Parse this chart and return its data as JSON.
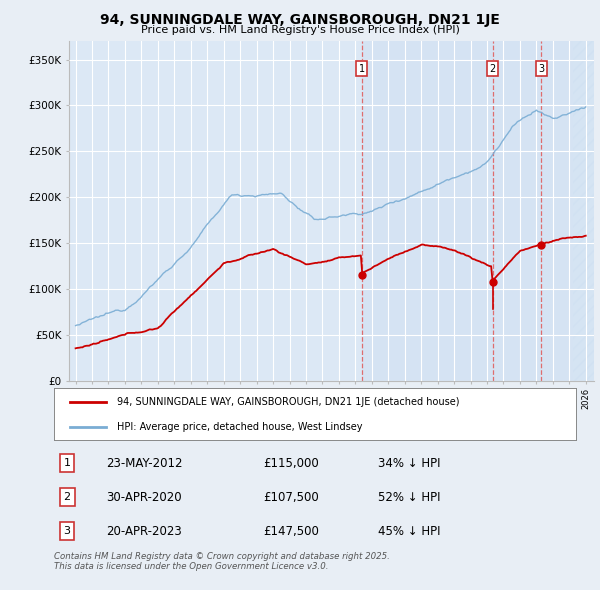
{
  "title": "94, SUNNINGDALE WAY, GAINSBOROUGH, DN21 1JE",
  "subtitle": "Price paid vs. HM Land Registry's House Price Index (HPI)",
  "background_color": "#e8eef5",
  "plot_bg_color": "#dce8f5",
  "shaded_bg_color": "#dce8f5",
  "grid_color": "#ffffff",
  "hpi_color": "#7aadd4",
  "price_color": "#cc0000",
  "vline_color": "#e06060",
  "ylim": [
    0,
    370000
  ],
  "yticks": [
    0,
    50000,
    100000,
    150000,
    200000,
    250000,
    300000,
    350000
  ],
  "ytick_labels": [
    "£0",
    "£50K",
    "£100K",
    "£150K",
    "£200K",
    "£250K",
    "£300K",
    "£350K"
  ],
  "sale_times": [
    2012.386,
    2020.333,
    2023.302
  ],
  "sale_prices": [
    115000,
    107500,
    147500
  ],
  "sale_labels": [
    "1",
    "2",
    "3"
  ],
  "legend_line1": "94, SUNNINGDALE WAY, GAINSBOROUGH, DN21 1JE (detached house)",
  "legend_line2": "HPI: Average price, detached house, West Lindsey",
  "sale_rows": [
    [
      "1",
      "23-MAY-2012",
      "£115,000",
      "34% ↓ HPI"
    ],
    [
      "2",
      "30-APR-2020",
      "£107,500",
      "52% ↓ HPI"
    ],
    [
      "3",
      "20-APR-2023",
      "£147,500",
      "45% ↓ HPI"
    ]
  ],
  "footer": "Contains HM Land Registry data © Crown copyright and database right 2025.\nThis data is licensed under the Open Government Licence v3.0."
}
